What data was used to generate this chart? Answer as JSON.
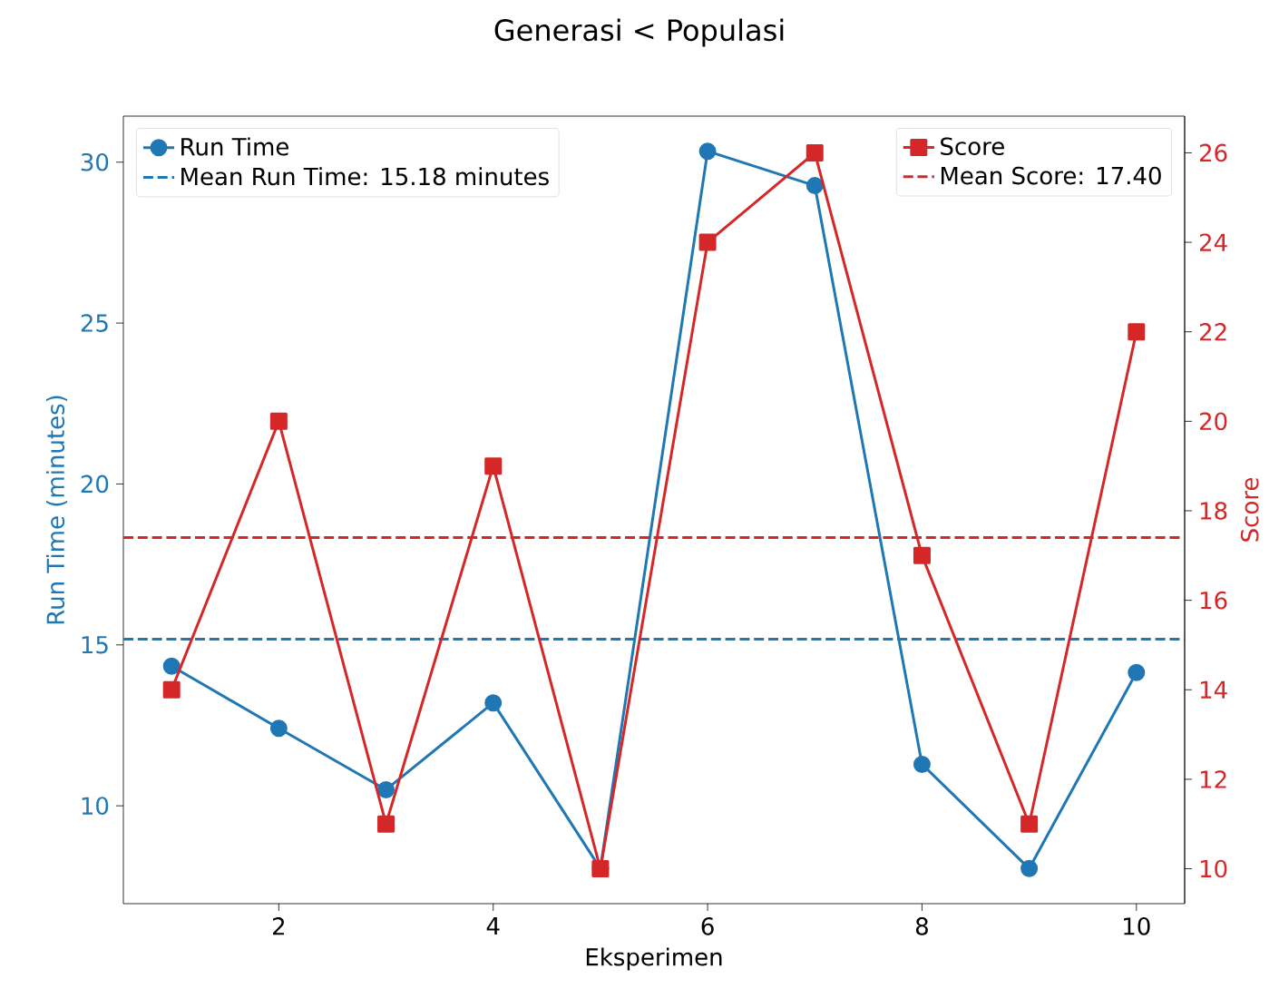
{
  "chart_data": {
    "type": "line",
    "title": "Generasi < Populasi",
    "xlabel": "Eksperimen",
    "ylabel": "Run Time (minutes)",
    "y2label": "Score",
    "x": [
      1,
      2,
      3,
      4,
      5,
      6,
      7,
      8,
      9,
      10
    ],
    "series": [
      {
        "name": "Run Time",
        "color": "#1f77b4",
        "marker": "circle",
        "values": [
          14.34,
          12.41,
          10.5,
          13.2,
          8.05,
          30.34,
          29.27,
          11.29,
          8.05,
          14.14
        ]
      },
      {
        "name": "Score",
        "color": "#d62728",
        "marker": "square",
        "axis": "y2",
        "values": [
          14,
          20,
          11,
          19,
          10,
          24,
          26,
          17,
          11,
          22
        ]
      }
    ],
    "xlim": [
      0.55,
      10.45
    ],
    "xticks": [
      2,
      4,
      6,
      8,
      10
    ],
    "ylim": [
      6.96,
      31.43
    ],
    "yticks": [
      10,
      15,
      20,
      25,
      30
    ],
    "y2lim": [
      9.22,
      26.82
    ],
    "y2ticks": [
      10,
      12,
      14,
      16,
      18,
      20,
      22,
      24,
      26
    ],
    "ref_lines": [
      {
        "axis": "y",
        "value": 15.18,
        "label": "Mean Run Time: 15.18 minutes",
        "color": "#1f77b4",
        "line_style": "dashed"
      },
      {
        "axis": "y2",
        "value": 17.4,
        "label": "Mean Score: 17.40",
        "color": "#d62728",
        "line_style": "dashed"
      }
    ],
    "legend": "top",
    "grid": false
  }
}
